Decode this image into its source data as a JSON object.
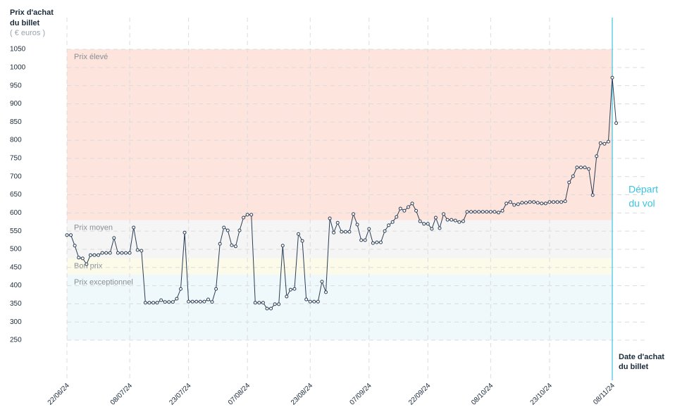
{
  "chart_data": {
    "type": "line",
    "y_label": [
      "Prix d'achat",
      "du billet"
    ],
    "y_unit": "( € euros )",
    "x_label": [
      "Date d'achat",
      "du billet"
    ],
    "departure_label": [
      "Départ",
      "du vol"
    ],
    "departure_date": "08/11/24",
    "departure_color": "#3cc3e0",
    "bands": [
      {
        "name": "Prix élevé",
        "from": 580,
        "to": 1050,
        "color": "#fde4dd"
      },
      {
        "name": "Prix moyen",
        "from": 475,
        "to": 580,
        "color": "#f5f5f5"
      },
      {
        "name": "Bon prix",
        "from": 430,
        "to": 475,
        "color": "#fcfbea"
      },
      {
        "name": "Prix exceptionnel",
        "from": 250,
        "to": 430,
        "color": "#eff8fb"
      }
    ],
    "ylim": [
      250,
      1050
    ],
    "yticks": [
      250,
      300,
      350,
      400,
      450,
      500,
      550,
      600,
      650,
      700,
      750,
      800,
      850,
      900,
      950,
      1000,
      1050
    ],
    "xlim": [
      "22/06/24",
      "08/11/24"
    ],
    "xticks": [
      "22/06/24",
      "08/07/24",
      "23/07/24",
      "07/08/24",
      "23/08/24",
      "07/09/24",
      "22/09/24",
      "08/10/24",
      "23/10/24",
      "08/11/24"
    ],
    "grid": true,
    "x": [
      "22/06/24",
      "23/06/24",
      "24/06/24",
      "25/06/24",
      "26/06/24",
      "27/06/24",
      "28/06/24",
      "29/06/24",
      "30/06/24",
      "01/07/24",
      "02/07/24",
      "03/07/24",
      "04/07/24",
      "05/07/24",
      "06/07/24",
      "07/07/24",
      "08/07/24",
      "09/07/24",
      "10/07/24",
      "11/07/24",
      "12/07/24",
      "13/07/24",
      "14/07/24",
      "15/07/24",
      "16/07/24",
      "17/07/24",
      "18/07/24",
      "19/07/24",
      "20/07/24",
      "21/07/24",
      "22/07/24",
      "23/07/24",
      "24/07/24",
      "25/07/24",
      "26/07/24",
      "27/07/24",
      "28/07/24",
      "29/07/24",
      "30/07/24",
      "31/07/24",
      "01/08/24",
      "02/08/24",
      "03/08/24",
      "04/08/24",
      "05/08/24",
      "06/08/24",
      "07/08/24",
      "08/08/24",
      "09/08/24",
      "10/08/24",
      "11/08/24",
      "12/08/24",
      "13/08/24",
      "14/08/24",
      "15/08/24",
      "16/08/24",
      "17/08/24",
      "18/08/24",
      "19/08/24",
      "20/08/24",
      "21/08/24",
      "22/08/24",
      "23/08/24",
      "24/08/24",
      "25/08/24",
      "26/08/24",
      "27/08/24",
      "28/08/24",
      "29/08/24",
      "30/08/24",
      "31/08/24",
      "01/09/24",
      "02/09/24",
      "03/09/24",
      "04/09/24",
      "05/09/24",
      "06/09/24",
      "07/09/24",
      "08/09/24",
      "09/09/24",
      "10/09/24",
      "11/09/24",
      "12/09/24",
      "13/09/24",
      "14/09/24",
      "15/09/24",
      "16/09/24",
      "17/09/24",
      "18/09/24",
      "19/09/24",
      "20/09/24",
      "21/09/24",
      "22/09/24",
      "23/09/24",
      "24/09/24",
      "25/09/24",
      "26/09/24",
      "27/09/24",
      "28/09/24",
      "29/09/24",
      "30/09/24",
      "01/10/24",
      "02/10/24",
      "03/10/24",
      "04/10/24",
      "05/10/24",
      "06/10/24",
      "07/10/24",
      "08/10/24",
      "09/10/24",
      "10/10/24",
      "11/10/24",
      "12/10/24",
      "13/10/24",
      "14/10/24",
      "15/10/24",
      "16/10/24",
      "17/10/24",
      "18/10/24",
      "19/10/24",
      "20/10/24",
      "21/10/24",
      "22/10/24",
      "23/10/24",
      "24/10/24",
      "25/10/24",
      "26/10/24",
      "27/10/24",
      "28/10/24",
      "29/10/24",
      "30/10/24",
      "31/10/24",
      "01/11/24",
      "02/11/24",
      "03/11/24",
      "04/11/24",
      "05/11/24",
      "06/11/24",
      "07/11/24",
      "08/11/24",
      "09/11/24"
    ],
    "series": [
      {
        "color": "#2c3e55",
        "values": [
          539,
          539,
          510,
          477,
          475,
          459,
          484,
          484,
          484,
          490,
          490,
          490,
          531,
          490,
          490,
          490,
          490,
          560,
          498,
          496,
          353,
          353,
          353,
          353,
          360,
          355,
          355,
          355,
          364,
          391,
          546,
          356,
          356,
          356,
          356,
          356,
          362,
          355,
          391,
          515,
          560,
          552,
          511,
          508,
          552,
          587,
          595,
          595,
          353,
          353,
          353,
          337,
          337,
          349,
          349,
          510,
          370,
          389,
          391,
          542,
          523,
          362,
          356,
          356,
          356,
          411,
          382,
          585,
          546,
          573,
          548,
          548,
          548,
          597,
          568,
          525,
          525,
          556,
          517,
          519,
          519,
          550,
          566,
          575,
          589,
          612,
          606,
          616,
          626,
          606,
          577,
          570,
          570,
          556,
          587,
          558,
          597,
          581,
          581,
          579,
          575,
          577,
          603,
          603,
          603,
          603,
          603,
          603,
          603,
          603,
          601,
          606,
          626,
          630,
          622,
          624,
          628,
          628,
          630,
          630,
          628,
          626,
          626,
          630,
          630,
          630,
          630,
          632,
          684,
          701,
          725,
          725,
          725,
          721,
          649,
          756,
          792,
          790,
          796,
          972,
          847
        ]
      }
    ]
  }
}
